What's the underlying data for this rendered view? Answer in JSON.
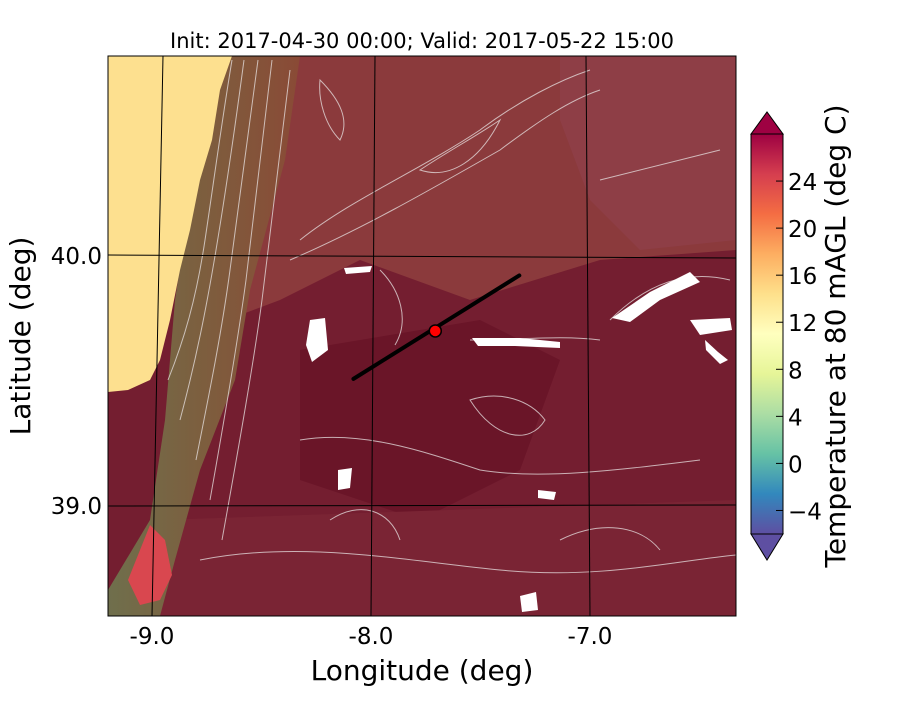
{
  "title": "Init: 2017-04-30 00:00; Valid: 2017-05-22 15:00",
  "map": {
    "xlabel": "Longitude (deg)",
    "ylabel": "Latitude (deg)",
    "xticks": [
      "-9.0",
      "-8.0",
      "-7.0"
    ],
    "yticks": [
      "40.0",
      "39.0"
    ],
    "lon_range": [
      -9.22,
      -6.38
    ],
    "lat_range": [
      38.57,
      40.79
    ],
    "field": "Temperature at 80 mAGL",
    "transect": {
      "start": [
        -8.11,
        39.51
      ],
      "end": [
        -7.36,
        39.92
      ]
    },
    "marker": {
      "lon": -7.74,
      "lat": 39.7,
      "color": "#ff0000"
    }
  },
  "colorbar": {
    "label": "Temperature at 80 mAGL (deg C)",
    "ticks": [
      "24",
      "20",
      "16",
      "12",
      "8",
      "4",
      "0",
      "−4"
    ],
    "tick_values": [
      24,
      20,
      16,
      12,
      8,
      4,
      0,
      -4
    ],
    "range": [
      -6,
      28
    ],
    "colormap": "Spectral_r"
  },
  "colors": {
    "ocean": "#fde08f",
    "coast_low": "#7a7452",
    "land_mid": "#8b4a3a",
    "land_hot": "#6e1a2c",
    "contour": "#e8e2e2"
  }
}
